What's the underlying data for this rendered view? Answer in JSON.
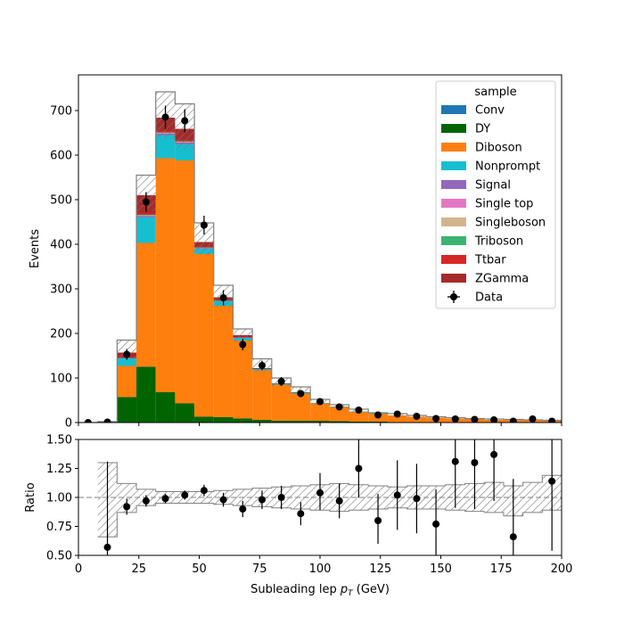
{
  "chart_data": [
    {
      "type": "bar",
      "stacked": true,
      "ylabel": "Events",
      "ylim": [
        0,
        780
      ],
      "xlim": [
        0,
        200
      ],
      "yticks": [
        0,
        100,
        200,
        300,
        400,
        500,
        600,
        700
      ],
      "bin_edges": [
        0,
        8,
        16,
        24,
        32,
        40,
        48,
        56,
        64,
        72,
        80,
        88,
        96,
        104,
        112,
        120,
        128,
        136,
        144,
        152,
        160,
        168,
        176,
        184,
        192,
        200
      ],
      "series": [
        {
          "name": "DY",
          "color": "#006400",
          "values": [
            0,
            0,
            57,
            125,
            68,
            43,
            13,
            12,
            9,
            6,
            4,
            4,
            4,
            3,
            2,
            2,
            1,
            1,
            1,
            1,
            1,
            1,
            1,
            1,
            1
          ]
        },
        {
          "name": "Diboson",
          "color": "#ff7f0e",
          "values": [
            0,
            1,
            70,
            278,
            525,
            545,
            365,
            250,
            175,
            111,
            81,
            61,
            39,
            32,
            22,
            18,
            15,
            12,
            10,
            8,
            7,
            5,
            5,
            4,
            3
          ]
        },
        {
          "name": "Nonprompt",
          "color": "#17becf",
          "values": [
            0,
            0,
            17,
            58,
            52,
            37,
            12,
            10,
            6,
            3,
            2,
            2,
            1,
            1,
            1,
            1,
            0,
            0,
            0,
            0,
            0,
            0,
            0,
            0,
            0
          ]
        },
        {
          "name": "Signal",
          "color": "#9467bd",
          "values": [
            0,
            0,
            1,
            2,
            3,
            3,
            1,
            1,
            1,
            0,
            0,
            0,
            0,
            0,
            0,
            0,
            0,
            0,
            0,
            0,
            0,
            0,
            0,
            0,
            0
          ]
        },
        {
          "name": "Single top",
          "color": "#e377c2",
          "values": [
            0,
            0,
            0,
            1,
            1,
            1,
            1,
            0,
            0,
            0,
            0,
            0,
            0,
            0,
            0,
            0,
            0,
            0,
            0,
            0,
            0,
            0,
            0,
            0,
            0
          ]
        },
        {
          "name": "Singleboson",
          "color": "#d2b48c",
          "values": [
            0,
            0,
            0,
            1,
            1,
            1,
            0,
            0,
            0,
            0,
            0,
            0,
            0,
            0,
            0,
            0,
            0,
            0,
            0,
            0,
            0,
            0,
            0,
            0,
            0
          ]
        },
        {
          "name": "Triboson",
          "color": "#3cb371",
          "values": [
            0,
            0,
            0,
            1,
            1,
            1,
            1,
            1,
            0,
            0,
            0,
            0,
            0,
            0,
            0,
            0,
            0,
            0,
            0,
            0,
            0,
            0,
            0,
            0,
            0
          ]
        },
        {
          "name": "Ttbar",
          "color": "#d62728",
          "values": [
            0,
            0,
            2,
            4,
            3,
            3,
            2,
            1,
            1,
            0,
            0,
            0,
            0,
            0,
            0,
            0,
            0,
            0,
            0,
            0,
            0,
            0,
            0,
            0,
            0
          ]
        },
        {
          "name": "ZGamma",
          "color": "#a52a2a",
          "values": [
            0,
            0,
            10,
            40,
            30,
            25,
            10,
            6,
            4,
            2,
            1,
            1,
            0,
            0,
            0,
            0,
            0,
            0,
            0,
            0,
            0,
            0,
            0,
            0,
            0
          ]
        }
      ],
      "legend_only": [
        {
          "name": "Conv",
          "color": "#1f77b4"
        }
      ],
      "uncertainty_total": [
        0,
        2,
        185,
        555,
        742,
        715,
        448,
        308,
        210,
        143,
        100,
        80,
        52,
        40,
        30,
        22,
        20,
        16,
        13,
        11,
        9,
        8,
        7,
        6,
        5
      ],
      "data": {
        "name": "Data",
        "x": [
          4,
          12,
          20,
          28,
          36,
          44,
          52,
          60,
          68,
          76,
          84,
          92,
          100,
          108,
          116,
          124,
          132,
          140,
          148,
          156,
          164,
          172,
          180,
          188,
          196
        ],
        "y": [
          0,
          1,
          153,
          495,
          685,
          677,
          443,
          280,
          175,
          128,
          92,
          65,
          47,
          35,
          28,
          17,
          19,
          14,
          9,
          8,
          7,
          6,
          3,
          8,
          3
        ],
        "err": [
          0,
          1,
          12,
          22,
          26,
          26,
          21,
          17,
          13,
          11,
          10,
          8,
          7,
          6,
          5,
          4,
          4,
          4,
          3,
          3,
          3,
          2,
          2,
          3,
          2
        ]
      },
      "legend_title": "sample",
      "legend_position": "top-right"
    },
    {
      "type": "scatter",
      "xlabel_parts": [
        "Subleading lep ",
        "p",
        "T",
        " (GeV)"
      ],
      "ylabel": "Ratio",
      "ylim": [
        0.5,
        1.5
      ],
      "xlim": [
        0,
        200
      ],
      "yticks": [
        "0.50",
        "0.75",
        "1.00",
        "1.25",
        "1.50"
      ],
      "xticks": [
        "0",
        "25",
        "50",
        "75",
        "100",
        "125",
        "150",
        "175",
        "200"
      ],
      "reference_line": 1.0,
      "uncertainty_band": [
        0,
        0.3,
        0.11,
        0.07,
        0.05,
        0.05,
        0.05,
        0.06,
        0.07,
        0.08,
        0.09,
        0.1,
        0.11,
        0.12,
        0.11,
        0.1,
        0.09,
        0.1,
        0.1,
        0.11,
        0.12,
        0.13,
        0.13,
        0.14,
        0.15
      ],
      "band_lower": [
        1,
        0.66,
        0.87,
        0.93,
        0.95,
        0.95,
        0.95,
        0.94,
        0.93,
        0.92,
        0.91,
        0.9,
        0.89,
        0.88,
        0.89,
        0.9,
        0.91,
        0.9,
        0.9,
        0.89,
        0.88,
        0.87,
        0.84,
        0.87,
        0.89
      ],
      "band_upper": [
        1,
        1.3,
        1.12,
        1.07,
        1.05,
        1.05,
        1.05,
        1.06,
        1.07,
        1.08,
        1.09,
        1.1,
        1.11,
        1.12,
        1.11,
        1.1,
        1.09,
        1.1,
        1.1,
        1.11,
        1.12,
        1.13,
        1.1,
        1.13,
        1.19
      ],
      "points": {
        "x": [
          12,
          20,
          28,
          36,
          44,
          52,
          60,
          68,
          76,
          84,
          92,
          100,
          108,
          116,
          124,
          132,
          140,
          148,
          156,
          164,
          172,
          180,
          196
        ],
        "y": [
          0.57,
          0.92,
          0.97,
          0.99,
          1.02,
          1.06,
          0.98,
          0.9,
          0.98,
          1.0,
          0.86,
          1.04,
          0.97,
          1.25,
          0.8,
          1.02,
          0.99,
          0.77,
          1.31,
          1.3,
          1.37,
          0.66,
          1.14
        ],
        "err_lo": [
          0.5,
          0.07,
          0.05,
          0.04,
          0.04,
          0.05,
          0.06,
          0.07,
          0.08,
          0.1,
          0.1,
          0.15,
          0.15,
          0.25,
          0.2,
          0.3,
          0.3,
          0.3,
          0.4,
          0.4,
          0.4,
          0.5,
          0.6
        ],
        "err_hi": [
          0.74,
          0.07,
          0.05,
          0.04,
          0.04,
          0.05,
          0.06,
          0.07,
          0.08,
          0.1,
          0.1,
          0.17,
          0.15,
          0.3,
          0.23,
          0.3,
          0.3,
          0.3,
          0.4,
          0.4,
          0.4,
          0.5,
          0.6
        ]
      }
    }
  ]
}
